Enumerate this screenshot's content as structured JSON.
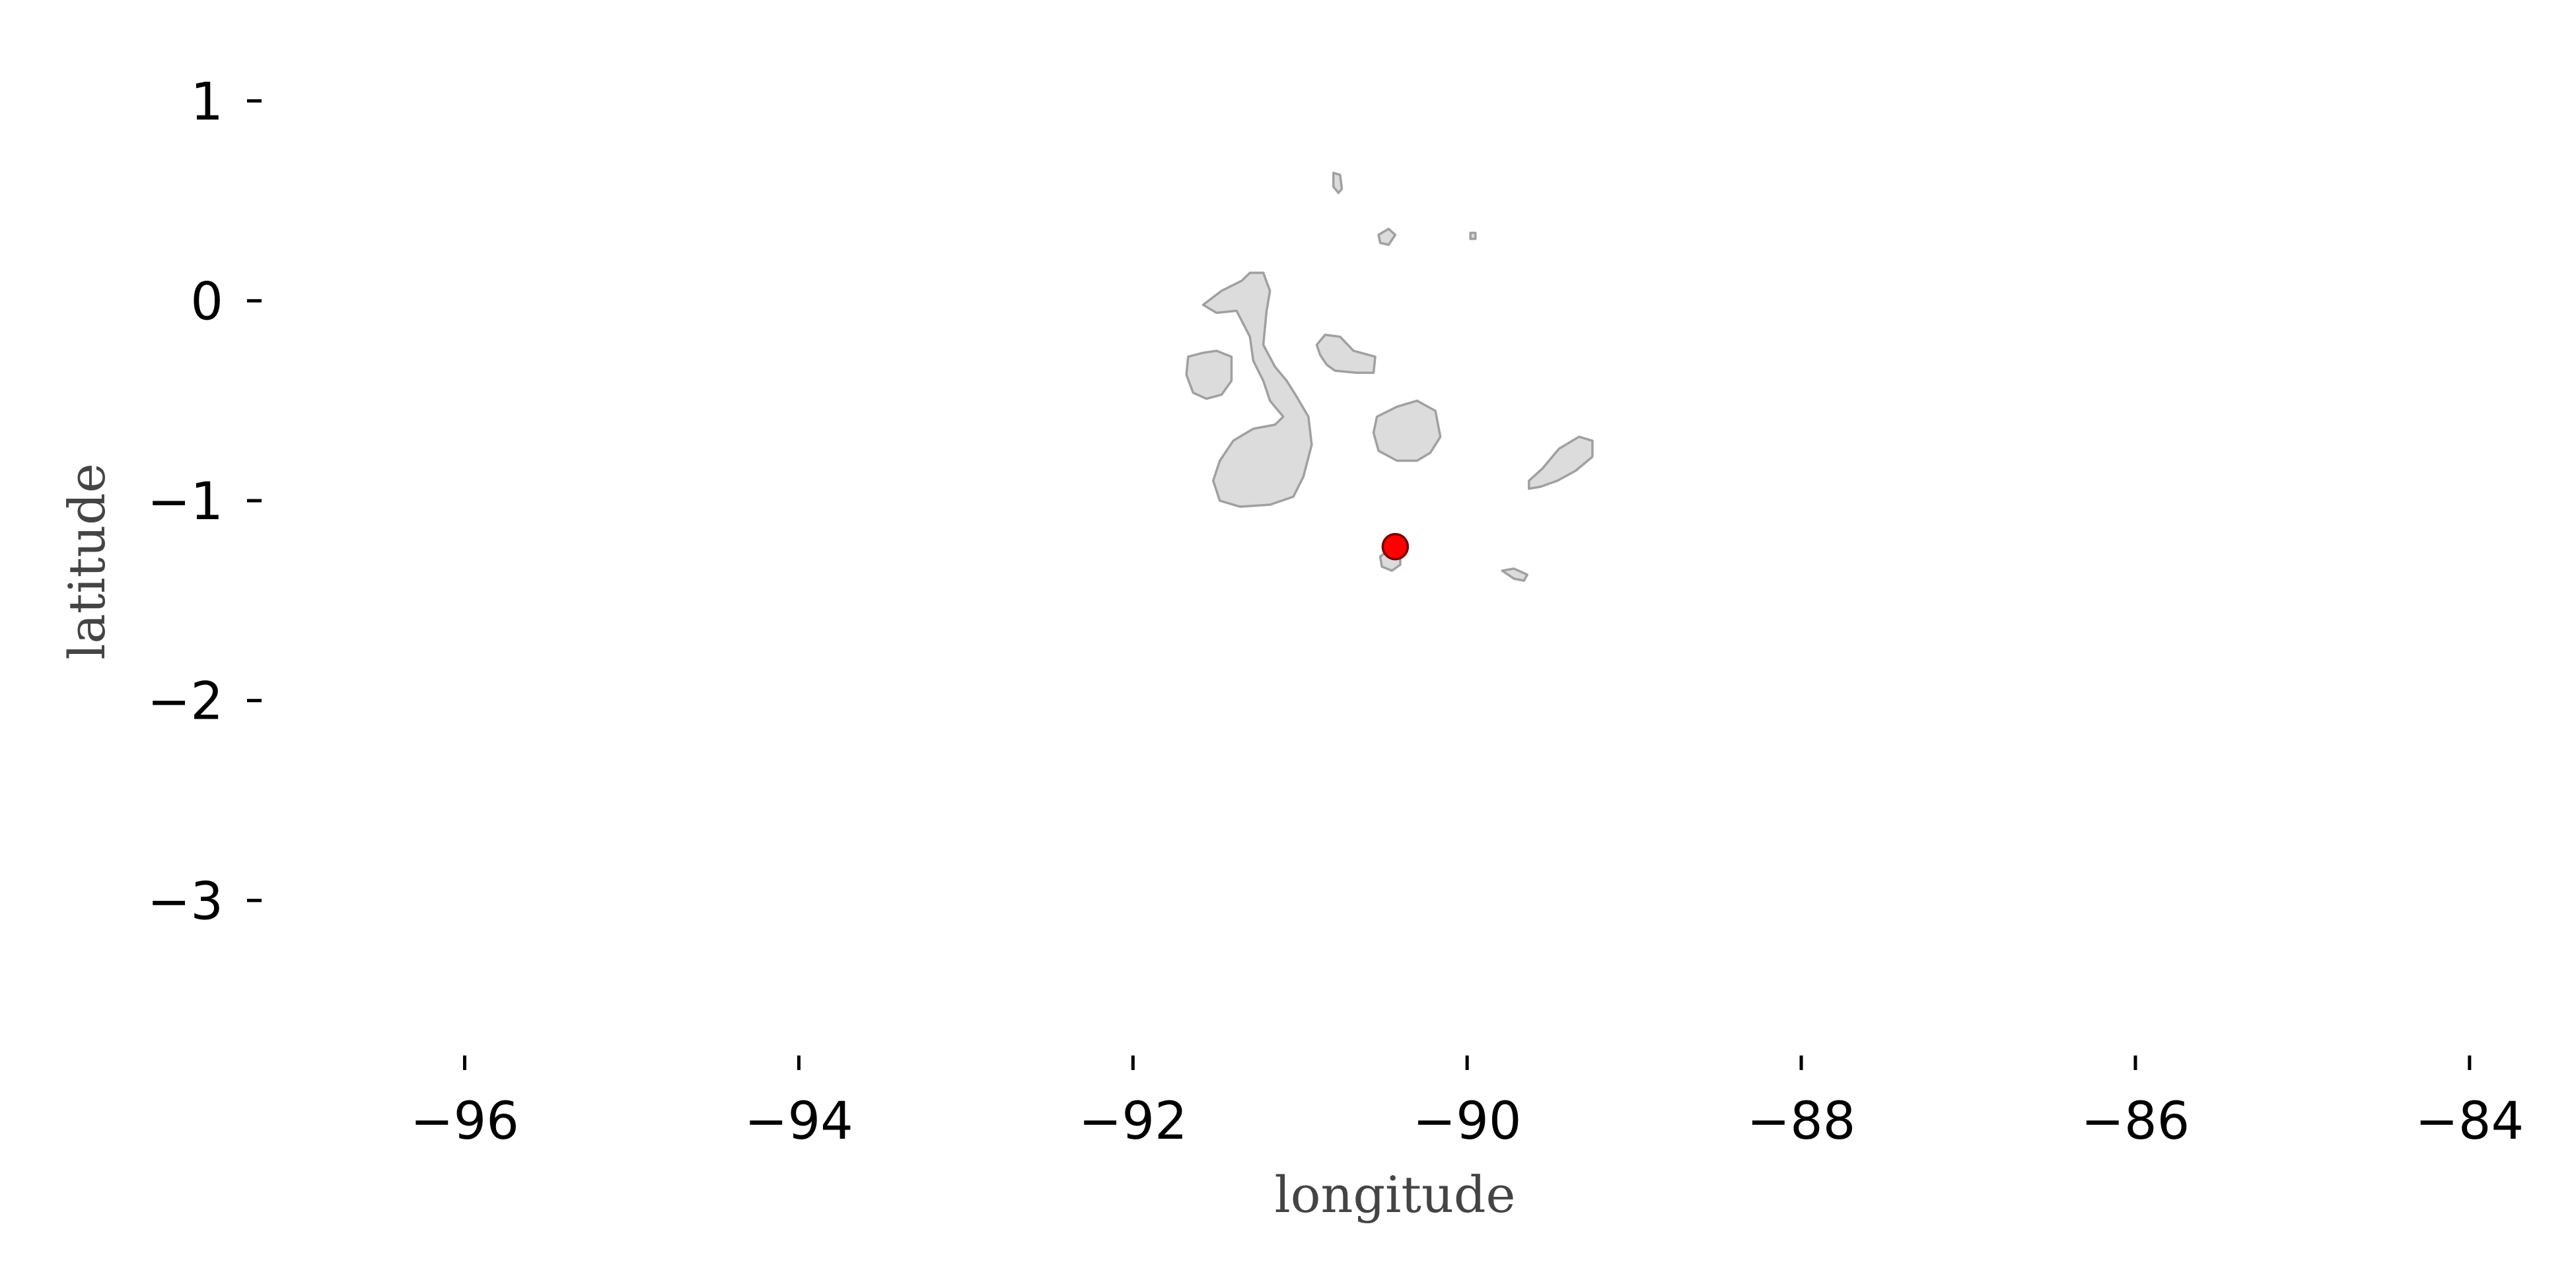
{
  "chart_data": {
    "type": "scatter",
    "title": "",
    "xlabel": "longitude",
    "ylabel": "latitude",
    "xlim": [
      -97.2,
      -83.6
    ],
    "ylim": [
      -3.65,
      1.3
    ],
    "x_ticks": [
      -96,
      -94,
      -92,
      -90,
      -88,
      -86,
      -84
    ],
    "x_tick_labels": [
      "−96",
      "−94",
      "−92",
      "−90",
      "−88",
      "−86",
      "−84"
    ],
    "y_ticks": [
      1,
      0,
      -1,
      -2,
      -3
    ],
    "y_tick_labels": [
      "1",
      "0",
      "−1",
      "−2",
      "−3"
    ],
    "grid": false,
    "points": [
      {
        "x": -90.43,
        "y": -1.23,
        "color": "#ff0000"
      }
    ],
    "land_color": "#dcdcdc",
    "land_edge_color": "#a0a0a0",
    "islands": [
      {
        "name": "isabela",
        "coords": [
          [
            -91.58,
            -0.02
          ],
          [
            -91.47,
            0.05
          ],
          [
            -91.35,
            0.1
          ],
          [
            -91.3,
            0.14
          ],
          [
            -91.22,
            0.14
          ],
          [
            -91.18,
            0.05
          ],
          [
            -91.2,
            -0.05
          ],
          [
            -91.22,
            -0.22
          ],
          [
            -91.15,
            -0.33
          ],
          [
            -91.08,
            -0.4
          ],
          [
            -91.02,
            -0.48
          ],
          [
            -90.95,
            -0.58
          ],
          [
            -90.93,
            -0.72
          ],
          [
            -90.98,
            -0.88
          ],
          [
            -91.04,
            -0.98
          ],
          [
            -91.18,
            -1.02
          ],
          [
            -91.36,
            -1.03
          ],
          [
            -91.48,
            -1.0
          ],
          [
            -91.52,
            -0.9
          ],
          [
            -91.48,
            -0.8
          ],
          [
            -91.4,
            -0.7
          ],
          [
            -91.28,
            -0.64
          ],
          [
            -91.15,
            -0.62
          ],
          [
            -91.1,
            -0.58
          ],
          [
            -91.18,
            -0.5
          ],
          [
            -91.22,
            -0.4
          ],
          [
            -91.28,
            -0.3
          ],
          [
            -91.3,
            -0.18
          ],
          [
            -91.38,
            -0.05
          ],
          [
            -91.5,
            -0.06
          ]
        ]
      },
      {
        "name": "fernandina",
        "coords": [
          [
            -91.67,
            -0.28
          ],
          [
            -91.58,
            -0.26
          ],
          [
            -91.5,
            -0.25
          ],
          [
            -91.41,
            -0.28
          ],
          [
            -91.41,
            -0.4
          ],
          [
            -91.47,
            -0.47
          ],
          [
            -91.56,
            -0.49
          ],
          [
            -91.64,
            -0.46
          ],
          [
            -91.68,
            -0.37
          ]
        ]
      },
      {
        "name": "santiago",
        "coords": [
          [
            -90.9,
            -0.22
          ],
          [
            -90.85,
            -0.17
          ],
          [
            -90.76,
            -0.18
          ],
          [
            -90.68,
            -0.25
          ],
          [
            -90.55,
            -0.28
          ],
          [
            -90.56,
            -0.36
          ],
          [
            -90.66,
            -0.36
          ],
          [
            -90.79,
            -0.35
          ],
          [
            -90.84,
            -0.32
          ],
          [
            -90.88,
            -0.27
          ]
        ]
      },
      {
        "name": "santa-cruz",
        "coords": [
          [
            -90.54,
            -0.58
          ],
          [
            -90.42,
            -0.53
          ],
          [
            -90.3,
            -0.5
          ],
          [
            -90.19,
            -0.55
          ],
          [
            -90.16,
            -0.68
          ],
          [
            -90.22,
            -0.76
          ],
          [
            -90.3,
            -0.8
          ],
          [
            -90.42,
            -0.8
          ],
          [
            -90.53,
            -0.75
          ],
          [
            -90.56,
            -0.66
          ]
        ]
      },
      {
        "name": "san-cristobal",
        "coords": [
          [
            -89.63,
            -0.9
          ],
          [
            -89.55,
            -0.84
          ],
          [
            -89.45,
            -0.74
          ],
          [
            -89.33,
            -0.68
          ],
          [
            -89.25,
            -0.7
          ],
          [
            -89.25,
            -0.78
          ],
          [
            -89.35,
            -0.85
          ],
          [
            -89.46,
            -0.9
          ],
          [
            -89.56,
            -0.93
          ],
          [
            -89.63,
            -0.94
          ]
        ]
      },
      {
        "name": "floreana",
        "coords": [
          [
            -90.52,
            -1.28
          ],
          [
            -90.46,
            -1.24
          ],
          [
            -90.4,
            -1.26
          ],
          [
            -90.4,
            -1.32
          ],
          [
            -90.45,
            -1.35
          ],
          [
            -90.51,
            -1.33
          ]
        ]
      },
      {
        "name": "espanola",
        "coords": [
          [
            -89.79,
            -1.35
          ],
          [
            -89.72,
            -1.34
          ],
          [
            -89.64,
            -1.37
          ],
          [
            -89.66,
            -1.4
          ],
          [
            -89.72,
            -1.39
          ]
        ]
      },
      {
        "name": "marchena",
        "coords": [
          [
            -90.53,
            0.33
          ],
          [
            -90.47,
            0.36
          ],
          [
            -90.43,
            0.33
          ],
          [
            -90.47,
            0.28
          ],
          [
            -90.52,
            0.29
          ]
        ]
      },
      {
        "name": "pinta",
        "coords": [
          [
            -90.8,
            0.64
          ],
          [
            -90.76,
            0.63
          ],
          [
            -90.75,
            0.56
          ],
          [
            -90.77,
            0.54
          ],
          [
            -90.8,
            0.57
          ]
        ]
      },
      {
        "name": "genovesa",
        "coords": [
          [
            -89.98,
            0.34
          ],
          [
            -89.95,
            0.34
          ],
          [
            -89.95,
            0.31
          ],
          [
            -89.98,
            0.31
          ]
        ]
      }
    ]
  }
}
